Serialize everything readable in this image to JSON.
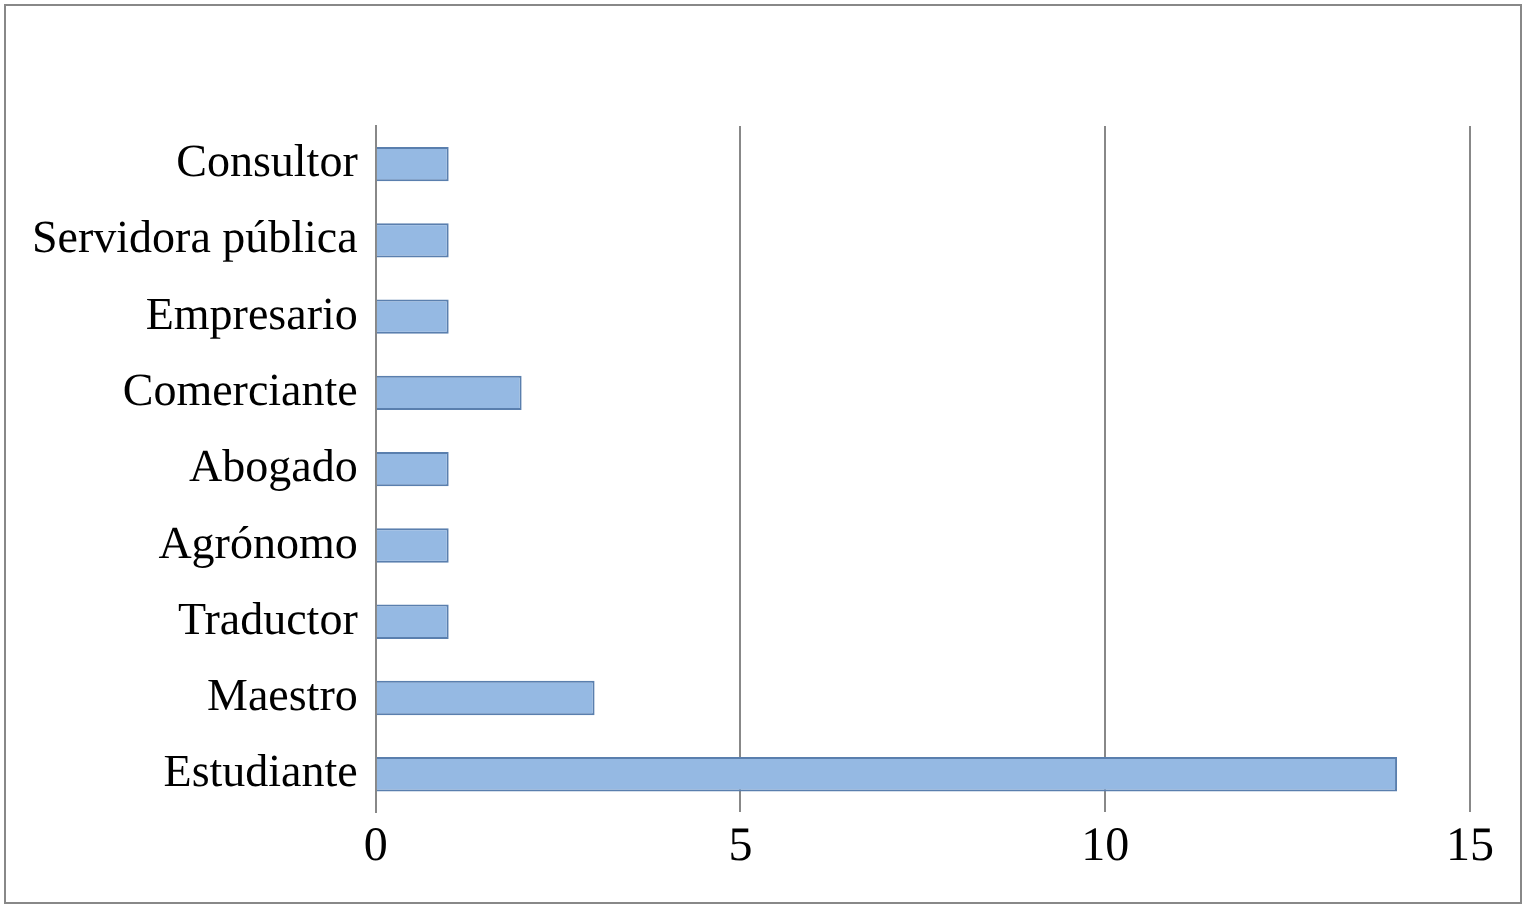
{
  "chart_data": {
    "type": "bar",
    "orientation": "horizontal",
    "categories": [
      "Consultor",
      "Servidora pública",
      "Empresario",
      "Comerciante",
      "Abogado",
      "Agrónomo",
      "Traductor",
      "Maestro",
      "Estudiante"
    ],
    "values": [
      1,
      1,
      1,
      2,
      1,
      1,
      1,
      3,
      14
    ],
    "color": "#95b9e3",
    "xlim": [
      0,
      15
    ],
    "xticks": [
      0,
      5,
      10,
      15
    ],
    "grid": "x"
  }
}
